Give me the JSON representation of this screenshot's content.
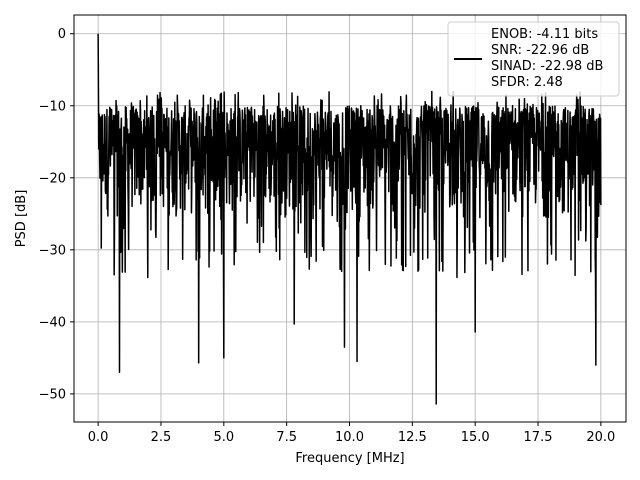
{
  "chart_data": {
    "type": "line",
    "title": "",
    "xlabel": "Frequency [MHz]",
    "ylabel": "PSD [dB]",
    "xlim": [
      -0.96,
      21.0
    ],
    "ylim": [
      -53.9,
      2.6
    ],
    "xticks": [
      0.0,
      2.5,
      5.0,
      7.5,
      10.0,
      12.5,
      15.0,
      17.5,
      20.0
    ],
    "xtick_labels": [
      "0.0",
      "2.5",
      "5.0",
      "7.5",
      "10.0",
      "12.5",
      "15.0",
      "17.5",
      "20.0"
    ],
    "yticks": [
      0,
      -10,
      -20,
      -30,
      -40,
      -50
    ],
    "ytick_labels": [
      "0",
      "−10",
      "−20",
      "−30",
      "−40",
      "−50"
    ],
    "grid": true,
    "legend_position": "top-right",
    "series": [
      {
        "color": "#000000",
        "x_range": [
          0.0,
          20.0
        ],
        "noise_upper_envelope_db": -10,
        "noise_lower_envelope_db": -26,
        "notable_points": [
          {
            "x": 0.0,
            "y": 0.0
          },
          {
            "x": 0.85,
            "y": -47.0
          },
          {
            "x": 4.0,
            "y": -45.7
          },
          {
            "x": 5.0,
            "y": -45.0
          },
          {
            "x": 7.8,
            "y": -40.3
          },
          {
            "x": 9.8,
            "y": -43.5
          },
          {
            "x": 10.3,
            "y": -45.5
          },
          {
            "x": 13.45,
            "y": -51.4
          },
          {
            "x": 15.0,
            "y": -41.4
          },
          {
            "x": 19.8,
            "y": -46.0
          }
        ]
      }
    ],
    "legend": {
      "lines": [
        "ENOB: -4.11 bits",
        "SNR: -22.96 dB",
        "SINAD: -22.98 dB",
        "SFDR: 2.48"
      ]
    }
  }
}
